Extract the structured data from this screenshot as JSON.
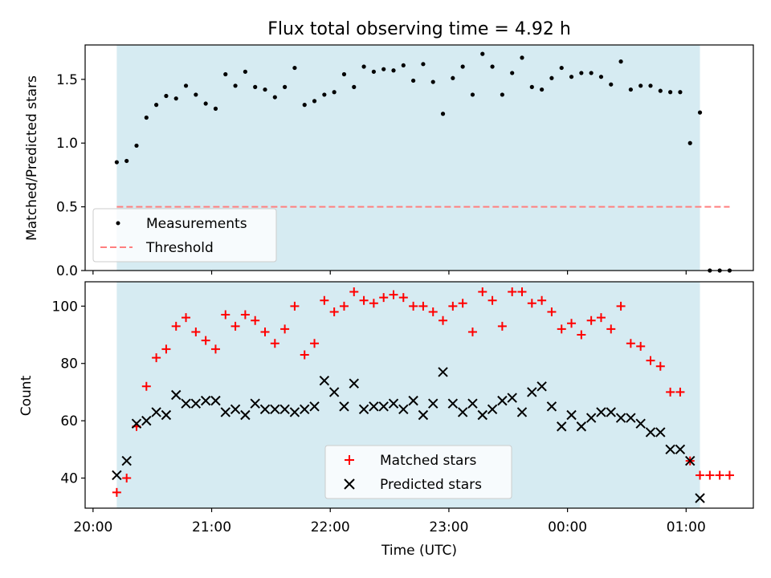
{
  "chart_data": {
    "type": "scatter",
    "title": "Flux total observing time = 4.92 h",
    "xlabel": "Time (UTC)",
    "x_ticks": [
      "20:00",
      "21:00",
      "22:00",
      "23:00",
      "00:00",
      "01:00"
    ],
    "xlim": [
      "19:56",
      "01:34"
    ],
    "observing_window": {
      "start": "20:12",
      "end": "01:07",
      "color": "#add8e6"
    },
    "panels": [
      {
        "id": "ratio",
        "ylabel": "Matched/Predicted stars",
        "ylim": [
          0,
          1.77
        ],
        "y_ticks": [
          "0.0",
          "0.5",
          "1.0",
          "1.5"
        ],
        "legend": {
          "location": "lower-left",
          "entries": [
            "Measurements",
            "Threshold"
          ]
        },
        "series": [
          {
            "name": "Measurements",
            "marker": "dot",
            "color": "#000000",
            "points": [
              [
                "20:12",
                0.85
              ],
              [
                "20:17",
                0.86
              ],
              [
                "20:22",
                0.98
              ],
              [
                "20:27",
                1.2
              ],
              [
                "20:32",
                1.3
              ],
              [
                "20:37",
                1.37
              ],
              [
                "20:42",
                1.35
              ],
              [
                "20:47",
                1.45
              ],
              [
                "20:52",
                1.38
              ],
              [
                "20:57",
                1.31
              ],
              [
                "21:02",
                1.27
              ],
              [
                "21:07",
                1.54
              ],
              [
                "21:12",
                1.45
              ],
              [
                "21:17",
                1.56
              ],
              [
                "21:22",
                1.44
              ],
              [
                "21:27",
                1.42
              ],
              [
                "21:32",
                1.36
              ],
              [
                "21:37",
                1.44
              ],
              [
                "21:42",
                1.59
              ],
              [
                "21:47",
                1.3
              ],
              [
                "21:52",
                1.33
              ],
              [
                "21:57",
                1.38
              ],
              [
                "22:02",
                1.4
              ],
              [
                "22:07",
                1.54
              ],
              [
                "22:12",
                1.44
              ],
              [
                "22:17",
                1.6
              ],
              [
                "22:22",
                1.56
              ],
              [
                "22:27",
                1.58
              ],
              [
                "22:32",
                1.57
              ],
              [
                "22:37",
                1.61
              ],
              [
                "22:42",
                1.49
              ],
              [
                "22:47",
                1.62
              ],
              [
                "22:52",
                1.48
              ],
              [
                "22:57",
                1.23
              ],
              [
                "23:02",
                1.51
              ],
              [
                "23:07",
                1.6
              ],
              [
                "23:12",
                1.38
              ],
              [
                "23:17",
                1.7
              ],
              [
                "23:22",
                1.6
              ],
              [
                "23:27",
                1.38
              ],
              [
                "23:32",
                1.55
              ],
              [
                "23:37",
                1.67
              ],
              [
                "23:42",
                1.44
              ],
              [
                "23:47",
                1.42
              ],
              [
                "23:52",
                1.51
              ],
              [
                "23:57",
                1.59
              ],
              [
                "00:02",
                1.52
              ],
              [
                "00:07",
                1.55
              ],
              [
                "00:12",
                1.55
              ],
              [
                "00:17",
                1.52
              ],
              [
                "00:22",
                1.46
              ],
              [
                "00:27",
                1.64
              ],
              [
                "00:32",
                1.42
              ],
              [
                "00:37",
                1.45
              ],
              [
                "00:42",
                1.45
              ],
              [
                "00:47",
                1.41
              ],
              [
                "00:52",
                1.4
              ],
              [
                "00:57",
                1.4
              ],
              [
                "01:02",
                1.0
              ],
              [
                "01:07",
                1.24
              ],
              [
                "01:12",
                0.0
              ],
              [
                "01:17",
                0.0
              ],
              [
                "01:22",
                0.0
              ]
            ]
          },
          {
            "name": "Threshold",
            "style": "dashed",
            "color": "#ff7f7f",
            "points": [
              [
                "20:12",
                0.5
              ],
              [
                "01:22",
                0.5
              ]
            ]
          }
        ]
      },
      {
        "id": "count",
        "ylabel": "Count",
        "ylim": [
          29.5,
          108.5
        ],
        "y_ticks": [
          "40",
          "60",
          "80",
          "100"
        ],
        "legend": {
          "location": "lower-center",
          "entries": [
            "Matched stars",
            "Predicted stars"
          ]
        },
        "series": [
          {
            "name": "Matched stars",
            "marker": "plus",
            "color": "#ff0000",
            "points": [
              [
                "20:12",
                35
              ],
              [
                "20:17",
                40
              ],
              [
                "20:22",
                58
              ],
              [
                "20:27",
                72
              ],
              [
                "20:32",
                82
              ],
              [
                "20:37",
                85
              ],
              [
                "20:42",
                93
              ],
              [
                "20:47",
                96
              ],
              [
                "20:52",
                91
              ],
              [
                "20:57",
                88
              ],
              [
                "21:02",
                85
              ],
              [
                "21:07",
                97
              ],
              [
                "21:12",
                93
              ],
              [
                "21:17",
                97
              ],
              [
                "21:22",
                95
              ],
              [
                "21:27",
                91
              ],
              [
                "21:32",
                87
              ],
              [
                "21:37",
                92
              ],
              [
                "21:42",
                100
              ],
              [
                "21:47",
                83
              ],
              [
                "21:52",
                87
              ],
              [
                "21:57",
                102
              ],
              [
                "22:02",
                98
              ],
              [
                "22:07",
                100
              ],
              [
                "22:12",
                105
              ],
              [
                "22:17",
                102
              ],
              [
                "22:22",
                101
              ],
              [
                "22:27",
                103
              ],
              [
                "22:32",
                104
              ],
              [
                "22:37",
                103
              ],
              [
                "22:42",
                100
              ],
              [
                "22:47",
                100
              ],
              [
                "22:52",
                98
              ],
              [
                "22:57",
                95
              ],
              [
                "23:02",
                100
              ],
              [
                "23:07",
                101
              ],
              [
                "23:12",
                91
              ],
              [
                "23:17",
                105
              ],
              [
                "23:22",
                102
              ],
              [
                "23:27",
                93
              ],
              [
                "23:32",
                105
              ],
              [
                "23:37",
                105
              ],
              [
                "23:42",
                101
              ],
              [
                "23:47",
                102
              ],
              [
                "23:52",
                98
              ],
              [
                "23:57",
                92
              ],
              [
                "00:02",
                94
              ],
              [
                "00:07",
                90
              ],
              [
                "00:12",
                95
              ],
              [
                "00:17",
                96
              ],
              [
                "00:22",
                92
              ],
              [
                "00:27",
                100
              ],
              [
                "00:32",
                87
              ],
              [
                "00:37",
                86
              ],
              [
                "00:42",
                81
              ],
              [
                "00:47",
                79
              ],
              [
                "00:52",
                70
              ],
              [
                "00:57",
                70
              ],
              [
                "01:02",
                46
              ],
              [
                "01:07",
                41
              ],
              [
                "01:12",
                41
              ],
              [
                "01:17",
                41
              ],
              [
                "01:22",
                41
              ]
            ]
          },
          {
            "name": "Predicted stars",
            "marker": "x",
            "color": "#000000",
            "points": [
              [
                "20:12",
                41
              ],
              [
                "20:17",
                46
              ],
              [
                "20:22",
                59
              ],
              [
                "20:27",
                60
              ],
              [
                "20:32",
                63
              ],
              [
                "20:37",
                62
              ],
              [
                "20:42",
                69
              ],
              [
                "20:47",
                66
              ],
              [
                "20:52",
                66
              ],
              [
                "20:57",
                67
              ],
              [
                "21:02",
                67
              ],
              [
                "21:07",
                63
              ],
              [
                "21:12",
                64
              ],
              [
                "21:17",
                62
              ],
              [
                "21:22",
                66
              ],
              [
                "21:27",
                64
              ],
              [
                "21:32",
                64
              ],
              [
                "21:37",
                64
              ],
              [
                "21:42",
                63
              ],
              [
                "21:47",
                64
              ],
              [
                "21:52",
                65
              ],
              [
                "21:57",
                74
              ],
              [
                "22:02",
                70
              ],
              [
                "22:07",
                65
              ],
              [
                "22:12",
                73
              ],
              [
                "22:17",
                64
              ],
              [
                "22:22",
                65
              ],
              [
                "22:27",
                65
              ],
              [
                "22:32",
                66
              ],
              [
                "22:37",
                64
              ],
              [
                "22:42",
                67
              ],
              [
                "22:47",
                62
              ],
              [
                "22:52",
                66
              ],
              [
                "22:57",
                77
              ],
              [
                "23:02",
                66
              ],
              [
                "23:07",
                63
              ],
              [
                "23:12",
                66
              ],
              [
                "23:17",
                62
              ],
              [
                "23:22",
                64
              ],
              [
                "23:27",
                67
              ],
              [
                "23:32",
                68
              ],
              [
                "23:37",
                63
              ],
              [
                "23:42",
                70
              ],
              [
                "23:47",
                72
              ],
              [
                "23:52",
                65
              ],
              [
                "23:57",
                58
              ],
              [
                "00:02",
                62
              ],
              [
                "00:07",
                58
              ],
              [
                "00:12",
                61
              ],
              [
                "00:17",
                63
              ],
              [
                "00:22",
                63
              ],
              [
                "00:27",
                61
              ],
              [
                "00:32",
                61
              ],
              [
                "00:37",
                59
              ],
              [
                "00:42",
                56
              ],
              [
                "00:47",
                56
              ],
              [
                "00:52",
                50
              ],
              [
                "00:57",
                50
              ],
              [
                "01:02",
                46
              ],
              [
                "01:07",
                33
              ]
            ]
          }
        ]
      }
    ]
  }
}
